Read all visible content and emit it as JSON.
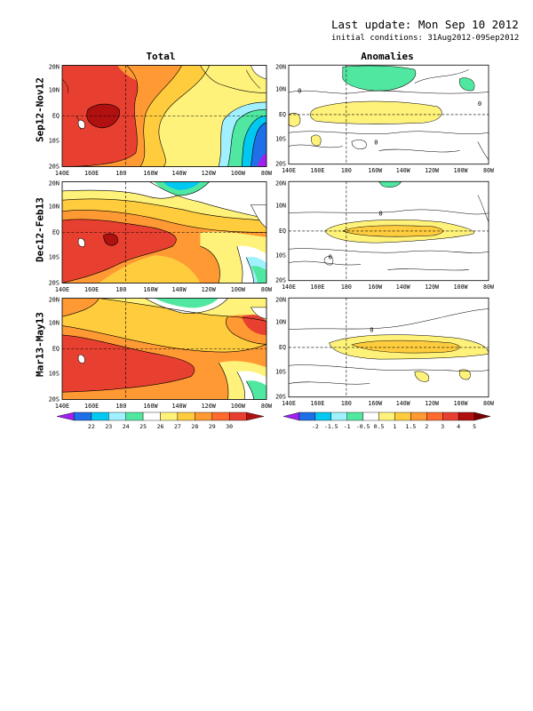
{
  "header": {
    "last_update": "Last update: Mon Sep 10 2012",
    "initial_conditions": "initial conditions: 31Aug2012-09Sep2012"
  },
  "columns": {
    "total": "Total",
    "anomalies": "Anomalies"
  },
  "rows": [
    "Sep12-Nov12",
    "Dec12-Feb13",
    "Mar13-May13"
  ],
  "axes": {
    "x_ticks": [
      "140E",
      "160E",
      "180",
      "160W",
      "140W",
      "120W",
      "100W",
      "80W"
    ],
    "y_ticks": [
      "20N",
      "10N",
      "EQ",
      "10S",
      "20S"
    ]
  },
  "colorbars": {
    "total": {
      "labels": [
        "22",
        "23",
        "24",
        "25",
        "26",
        "27",
        "28",
        "29",
        "30"
      ],
      "colors": [
        "#a020f0",
        "#1e6fe8",
        "#00c8f0",
        "#a0f0ff",
        "#50e8a0",
        "#ffffff",
        "#fff27a",
        "#ffcc3e",
        "#ff9933",
        "#ff6a2e",
        "#e84030",
        "#b01010"
      ]
    },
    "anomalies": {
      "labels": [
        "-2",
        "-1.5",
        "-1",
        "-0.5",
        "0.5",
        "1",
        "1.5",
        "2",
        "3",
        "4",
        "5"
      ],
      "colors": [
        "#a020f0",
        "#1e6fe8",
        "#00c8f0",
        "#a0f0ff",
        "#50e8a0",
        "#ffffff",
        "#fff27a",
        "#ffcc3e",
        "#ff9933",
        "#ff6a2e",
        "#e84030",
        "#b01010",
        "#7a0000"
      ]
    }
  },
  "contour_labels": {
    "anom_row1": [
      "0",
      "0",
      "0"
    ],
    "anom_row2": [
      "0",
      "0"
    ],
    "anom_row3": [
      "0"
    ]
  },
  "colors": {
    "c_red": "#e84030",
    "c_darkred": "#b01010",
    "c_orange": "#ff9933",
    "c_lorange": "#ffcc3e",
    "c_yellow": "#fff27a",
    "c_green": "#50e8a0",
    "c_lblue": "#a0f0ff",
    "c_cyan": "#00c8f0",
    "c_blue": "#1e6fe8",
    "c_purple": "#a020f0"
  }
}
